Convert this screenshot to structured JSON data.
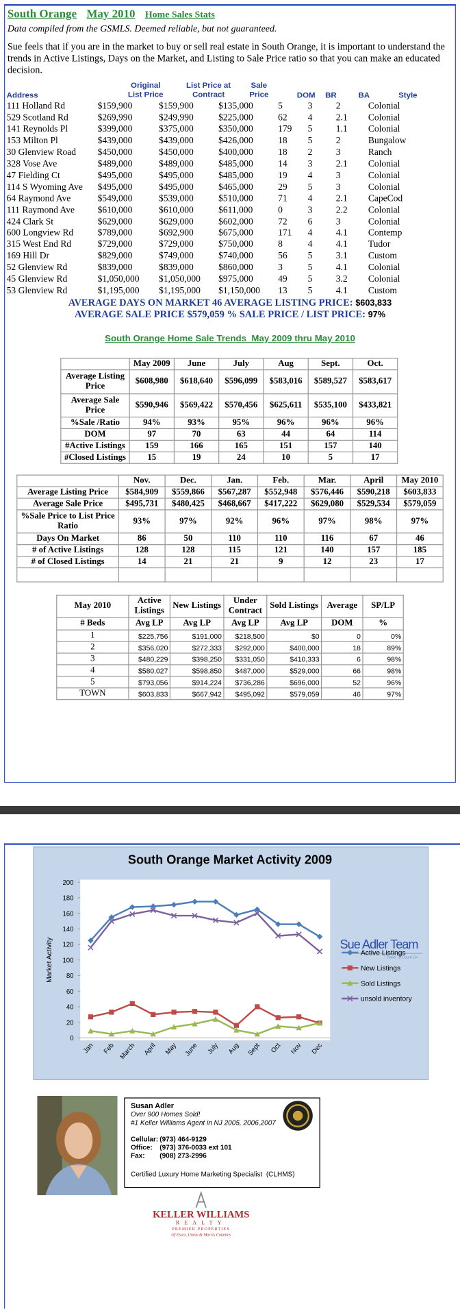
{
  "header": {
    "title": "South Orange",
    "period": "May 2010",
    "subtitle": "Home Sales Stats",
    "note": "Data compiled from the GSMLS.  Deemed reliable, but not guaranteed.",
    "intro": "Sue feels that if you are in the market to buy or sell real estate in South Orange, it is important to understand the trends in Active Listings, Days on the Market, and Listing to Sale Price ratio so that you can make an educated decision."
  },
  "sales": {
    "columns": [
      "Address",
      "Original List Price",
      "List Price at Contract",
      "Sale Price",
      "DOM",
      "BR",
      "BA",
      "Style"
    ],
    "rows": [
      [
        "111 Holland Rd",
        "$159,900",
        "$159,900",
        "$135,000",
        "5",
        "3",
        "2",
        "Colonial"
      ],
      [
        "529 Scotland Rd",
        "$269,990",
        "$249,990",
        "$225,000",
        "62",
        "4",
        "2.1",
        "Colonial"
      ],
      [
        "141 Reynolds Pl",
        "$399,000",
        "$375,000",
        "$350,000",
        "179",
        "5",
        "1.1",
        "Colonial"
      ],
      [
        "153 Milton Pl",
        "$439,000",
        "$439,000",
        "$426,000",
        "18",
        "5",
        "2",
        "Bungalow"
      ],
      [
        "30 Glenview Road",
        "$450,000",
        "$450,000",
        "$400,000",
        "18",
        "2",
        "3",
        "Ranch"
      ],
      [
        "328 Vose Ave",
        "$489,000",
        "$489,000",
        "$485,000",
        "14",
        "3",
        "2.1",
        "Colonial"
      ],
      [
        "47 Fielding Ct",
        "$495,000",
        "$495,000",
        "$485,000",
        "19",
        "4",
        "3",
        "Colonial"
      ],
      [
        "114 S Wyoming Ave",
        "$495,000",
        "$495,000",
        "$465,000",
        "29",
        "5",
        "3",
        "Colonial"
      ],
      [
        "64 Raymond Ave",
        "$549,000",
        "$539,000",
        "$510,000",
        "71",
        "4",
        "2.1",
        "CapeCod"
      ],
      [
        "111 Raymond Ave",
        "$610,000",
        "$610,000",
        "$611,000",
        "0",
        "3",
        "2.2",
        "Colonial"
      ],
      [
        "424 Clark St",
        "$629,000",
        "$629,000",
        "$602,000",
        "72",
        "6",
        "3",
        "Colonial"
      ],
      [
        "600 Longview Rd",
        "$789,000",
        "$692,900",
        "$675,000",
        "171",
        "4",
        "4.1",
        "Contemp"
      ],
      [
        "315 West End Rd",
        "$729,000",
        "$729,000",
        "$750,000",
        "8",
        "4",
        "4.1",
        "Tudor"
      ],
      [
        "169 Hill Dr",
        "$829,000",
        "$749,000",
        "$740,000",
        "56",
        "5",
        "3.1",
        "Custom"
      ],
      [
        "52 Glenview Rd",
        "$839,000",
        "$839,000",
        "$860,000",
        "3",
        "5",
        "4.1",
        "Colonial"
      ],
      [
        "45 Glenview Rd",
        "$1,050,000",
        "$1,050,000",
        "$975,000",
        "49",
        "5",
        "3.2",
        "Colonial"
      ],
      [
        "53 Glenview Rd",
        "$1,195,000",
        "$1,195,000",
        "$1,150,000",
        "13",
        "5",
        "4.1",
        "Custom"
      ]
    ]
  },
  "averages": [
    {
      "label": "AVERAGE DAYS ON MARKET",
      "value": "46"
    },
    {
      "label": "AVERAGE LISTING PRICE:",
      "value": "$603,833"
    },
    {
      "label": "AVERAGE SALE PRICE",
      "value": "$579,059"
    },
    {
      "label": "% SALE PRICE / LIST PRICE:",
      "value": "97%"
    }
  ],
  "trends": {
    "title": "South Orange Home Sale Trends  May 2009 thru May 2010",
    "tables": [
      {
        "columns": [
          "May 2009",
          "June",
          "July",
          "Aug",
          "Sept.",
          "Oct."
        ],
        "rows": [
          {
            "label": "Average Listing Price",
            "values": [
              "$608,980",
              "$618,640",
              "$596,099",
              "$583,016",
              "$589,527",
              "$583,617"
            ]
          },
          {
            "label": "Average Sale Price",
            "values": [
              "$590,946",
              "$569,422",
              "$570,456",
              "$625,611",
              "$535,100",
              "$433,821"
            ]
          },
          {
            "label": "%Sale /Ratio",
            "values": [
              "94%",
              "93%",
              "95%",
              "96%",
              "96%",
              "96%"
            ]
          },
          {
            "label": "DOM",
            "values": [
              "97",
              "70",
              "63",
              "44",
              "64",
              "114"
            ]
          },
          {
            "label": "#Active Listings",
            "values": [
              "159",
              "166",
              "165",
              "151",
              "157",
              "140"
            ]
          },
          {
            "label": "#Closed Listings",
            "values": [
              "15",
              "19",
              "24",
              "10",
              "5",
              "17"
            ]
          }
        ]
      },
      {
        "columns": [
          "Nov.",
          "Dec.",
          "Jan.",
          "Feb.",
          "Mar.",
          "April",
          "May 2010"
        ],
        "rows": [
          {
            "label": "Average Listing Price",
            "values": [
              "$584,909",
              "$559,866",
              "$567,287",
              "$552,948",
              "$576,446",
              "$590,218",
              "$603,833"
            ]
          },
          {
            "label": "Average Sale Price",
            "values": [
              "$495,731",
              "$480,425",
              "$468,667",
              "$417,222",
              "$629,080",
              "$529,534",
              "$579,059"
            ]
          },
          {
            "label": "%Sale Price to List Price Ratio",
            "values": [
              "93%",
              "97%",
              "92%",
              "96%",
              "97%",
              "98%",
              "97%"
            ]
          },
          {
            "label": "Days On Market",
            "values": [
              "86",
              "50",
              "110",
              "110",
              "116",
              "67",
              "46"
            ]
          },
          {
            "label": "# of Active Listings",
            "values": [
              "128",
              "128",
              "115",
              "121",
              "140",
              "157",
              "185"
            ]
          },
          {
            "label": "# of Closed Listings",
            "values": [
              "14",
              "21",
              "21",
              "9",
              "12",
              "23",
              "17"
            ]
          }
        ]
      }
    ]
  },
  "beds": {
    "headers": [
      [
        "May 2010",
        "Active Listings",
        "New Listings",
        "Under Contract",
        "Sold Listings",
        "Average",
        "SP/LP"
      ],
      [
        "# Beds",
        "Avg LP",
        "Avg LP",
        "Avg LP",
        "Avg LP",
        "DOM",
        "%"
      ]
    ],
    "rows": [
      [
        "1",
        "$225,756",
        "$191,000",
        "$218,500",
        "$0",
        "0",
        "0%"
      ],
      [
        "2",
        "$356,020",
        "$272,333",
        "$292,000",
        "$400,000",
        "18",
        "89%"
      ],
      [
        "3",
        "$480,229",
        "$398,250",
        "$331,050",
        "$410,333",
        "6",
        "98%"
      ],
      [
        "4",
        "$580,027",
        "$598,850",
        "$487,000",
        "$529,000",
        "66",
        "98%"
      ],
      [
        "5",
        "$793,056",
        "$914,224",
        "$736,286",
        "$696,000",
        "52",
        "96%"
      ],
      [
        "TOWN",
        "$603,833",
        "$667,942",
        "$495,092",
        "$579,059",
        "46",
        "97%"
      ]
    ]
  },
  "chart": {
    "type": "line",
    "title": "South Orange Market Activity 2009",
    "y_label": "Market Activity",
    "categories": [
      "Jan",
      "Feb",
      "March",
      "April",
      "May",
      "June",
      "July",
      "Aug",
      "Sept",
      "Oct",
      "Nov",
      "Dec"
    ],
    "ylim": [
      0,
      200
    ],
    "yticks": [
      0,
      20,
      40,
      60,
      80,
      100,
      120,
      140,
      160,
      180,
      200
    ],
    "series": [
      {
        "name": "Active Listings",
        "color": "#4a7ebb",
        "marker": "diamond",
        "values": [
          125,
          155,
          168,
          169,
          171,
          175,
          175,
          158,
          165,
          146,
          146,
          130
        ]
      },
      {
        "name": "New Listings",
        "color": "#be4b48",
        "marker": "square",
        "values": [
          27,
          33,
          44,
          30,
          33,
          34,
          33,
          16,
          40,
          26,
          27,
          19
        ]
      },
      {
        "name": "Sold Listings",
        "color": "#98b954",
        "marker": "triangle",
        "values": [
          9,
          5,
          9,
          5,
          14,
          18,
          24,
          10,
          5,
          15,
          13,
          19
        ]
      },
      {
        "name": "unsold inventory",
        "color": "#7d60a0",
        "marker": "x",
        "values": [
          116,
          150,
          159,
          164,
          157,
          157,
          151,
          148,
          160,
          131,
          133,
          111
        ]
      }
    ]
  },
  "brand": {
    "team": "Sue Adler Team",
    "tagline": "Yours To Count On"
  },
  "agent": {
    "name": "Susan Adler",
    "headline": "Over 900 Homes Sold!",
    "award": "#1 Keller Williams Agent in NJ 2005, 2006,2007",
    "contacts": [
      {
        "label": "Cellular:",
        "value": "(973) 464-9129"
      },
      {
        "label": "Office:",
        "value": "(973) 376-0033 ext 101"
      },
      {
        "label": "Fax:",
        "value": "(908) 273-2996"
      }
    ],
    "certification": "Certified Luxury Home Marketing Specialist  (CLHMS)"
  },
  "company": {
    "name": "KELLER WILLIAMS",
    "realty": "REALTY",
    "division": "PREMIER PROPERTIES",
    "region": "Of Essex, Union & Morris Counties"
  }
}
